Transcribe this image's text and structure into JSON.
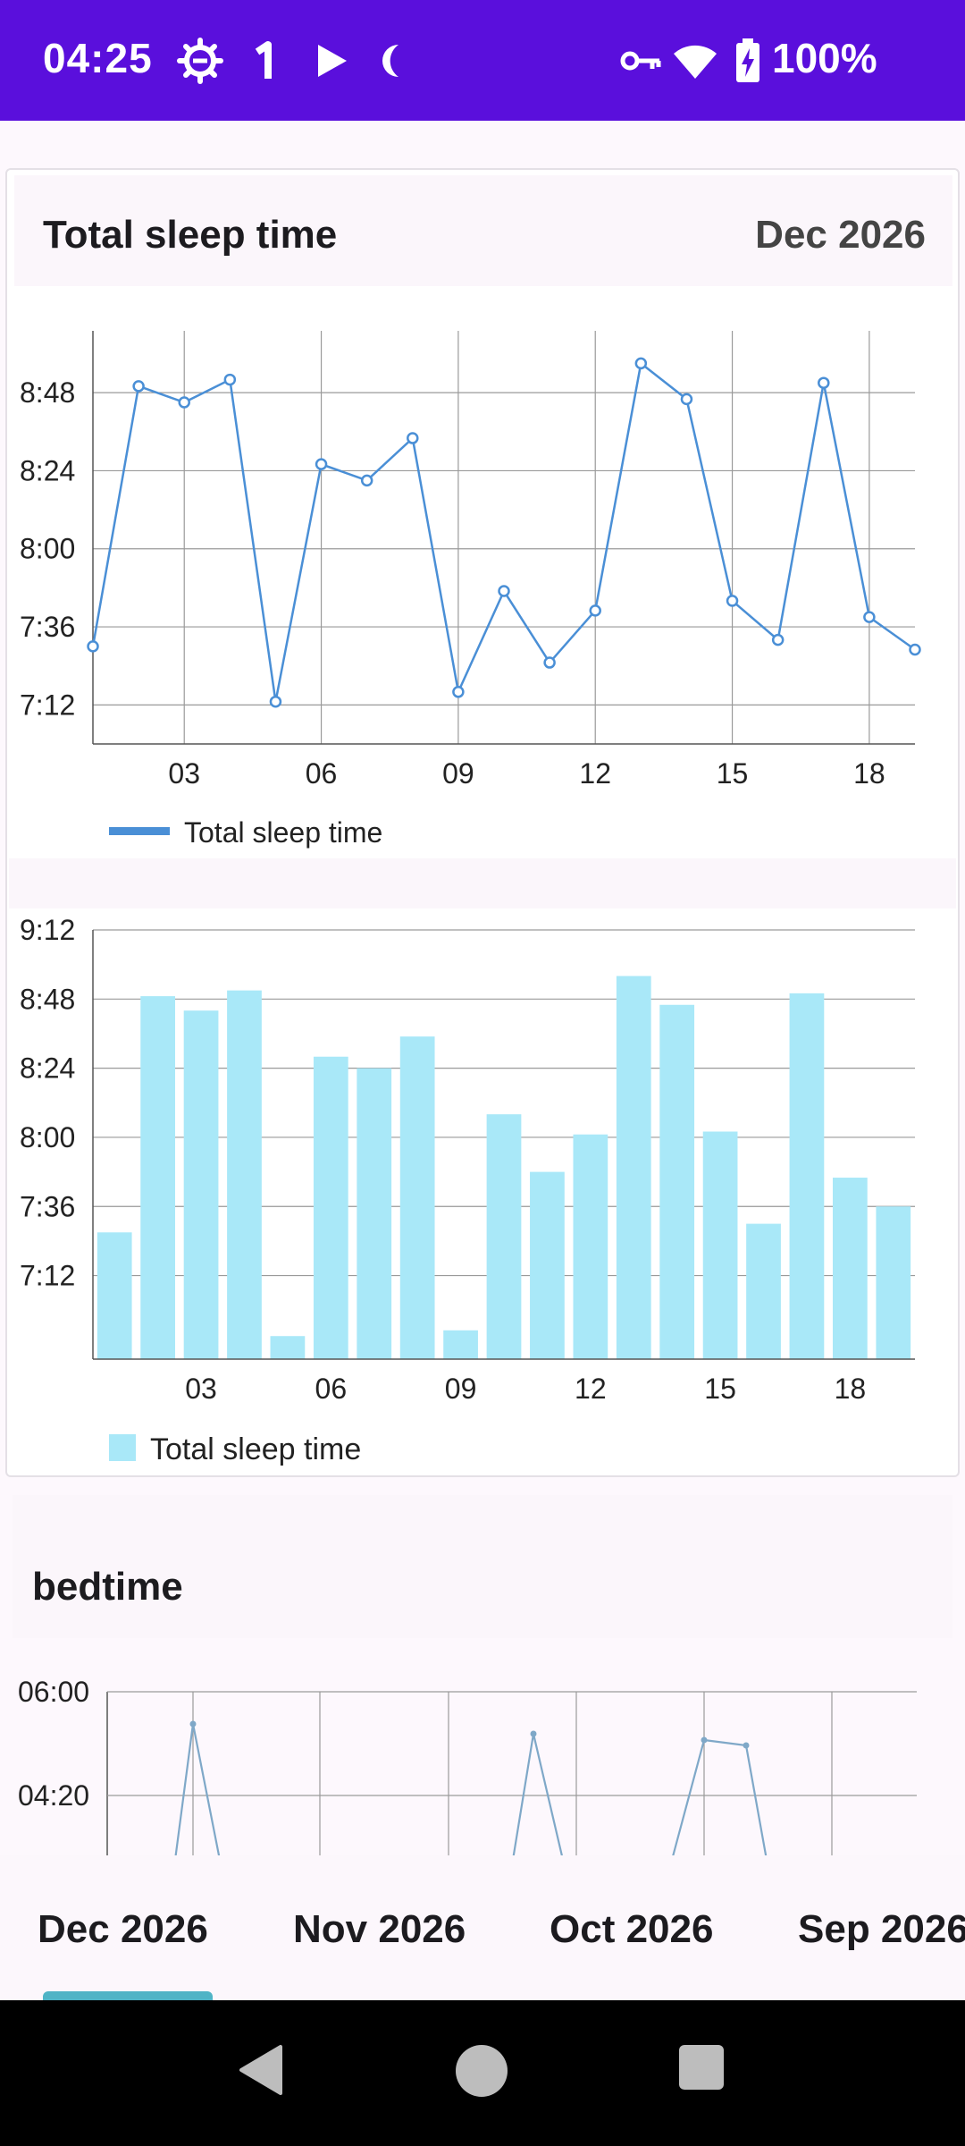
{
  "status_bar": {
    "time": "04:25",
    "battery": "100%",
    "icons": [
      "gear-icon",
      "notification-1-icon",
      "play-icon",
      "moon-icon",
      "vpn-key-icon",
      "wifi-icon",
      "battery-charging-icon"
    ],
    "bg_color": "#5a0fdc"
  },
  "card": {
    "title": "Total sleep time",
    "month": "Dec 2026"
  },
  "chart_data": [
    {
      "type": "line",
      "x": [
        1,
        2,
        3,
        4,
        5,
        6,
        7,
        8,
        9,
        10,
        11,
        12,
        13,
        14,
        15,
        16,
        17,
        18,
        19
      ],
      "x_ticks": [
        "03",
        "06",
        "09",
        "12",
        "15",
        "18"
      ],
      "y_ticks": [
        "7:12",
        "7:36",
        "8:00",
        "8:24",
        "8:48"
      ],
      "series": [
        {
          "name": "Total sleep time",
          "color": "#4a8fd6",
          "values_minutes": [
            450,
            530,
            525,
            532,
            433,
            506,
            501,
            514,
            436,
            467,
            445,
            461,
            537,
            526,
            464,
            452,
            531,
            459,
            449
          ]
        }
      ],
      "ylim_minutes": [
        420,
        547
      ],
      "legend": {
        "label": "Total sleep time",
        "placement": "bottom-left"
      },
      "grid": true
    },
    {
      "type": "bar",
      "x": [
        1,
        2,
        3,
        4,
        5,
        6,
        7,
        8,
        9,
        10,
        11,
        12,
        13,
        14,
        15,
        16,
        17,
        18,
        19
      ],
      "x_ticks": [
        "03",
        "06",
        "09",
        "12",
        "15",
        "18"
      ],
      "y_ticks": [
        "7:12",
        "7:36",
        "8:00",
        "8:24",
        "8:48",
        "9:12"
      ],
      "series": [
        {
          "name": "Total sleep time",
          "color": "#a9e8f8",
          "values_minutes": [
            447,
            529,
            524,
            531,
            411,
            508,
            504,
            515,
            413,
            488,
            468,
            481,
            536,
            526,
            482,
            450,
            530,
            466,
            456
          ]
        }
      ],
      "ylim_minutes": [
        403,
        552
      ],
      "legend": {
        "label": "Total sleep time",
        "placement": "bottom-left"
      },
      "grid": true
    },
    {
      "type": "line",
      "title": "bedtime",
      "y_ticks": [
        "06:00",
        "04:20"
      ],
      "series": [
        {
          "color": "#7fa8c8"
        }
      ],
      "grid": true
    }
  ],
  "bedtime": {
    "label": "bedtime",
    "y_tick_top": "06:00",
    "y_tick_mid": "04:20"
  },
  "month_tabs": [
    {
      "label": "Dec 2026",
      "selected": true
    },
    {
      "label": "Nov 2026",
      "selected": false
    },
    {
      "label": "Oct 2026",
      "selected": false
    },
    {
      "label": "Sep 2026",
      "selected": false
    }
  ],
  "nav_bar": {
    "icons": [
      "back-icon",
      "home-icon",
      "recents-icon"
    ]
  }
}
